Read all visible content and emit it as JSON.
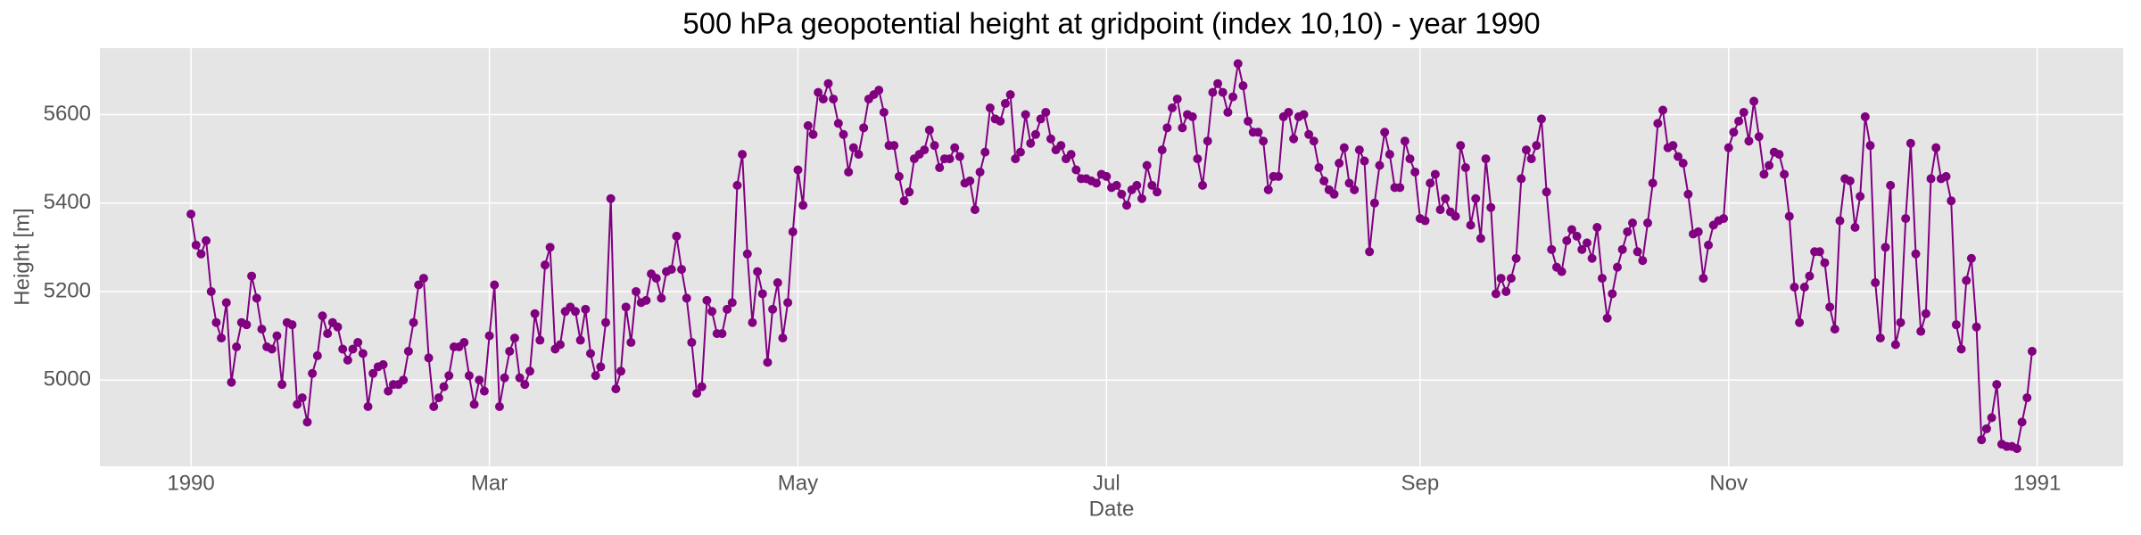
{
  "chart_data": {
    "type": "line",
    "title": "500 hPa geopotential height at gridpoint (index 10,10) - year 1990",
    "xlabel": "Date",
    "ylabel": "Height [m]",
    "color": "#800080",
    "grid": true,
    "xlim": [
      -18,
      382
    ],
    "xticks": [
      {
        "value": 0,
        "label": "1990"
      },
      {
        "value": 59,
        "label": "Mar"
      },
      {
        "value": 120,
        "label": "May"
      },
      {
        "value": 181,
        "label": "Jul"
      },
      {
        "value": 243,
        "label": "Sep"
      },
      {
        "value": 304,
        "label": "Nov"
      },
      {
        "value": 365,
        "label": "1991"
      }
    ],
    "ylim": [
      4805,
      5750
    ],
    "yticks": [
      5000,
      5200,
      5400,
      5600
    ],
    "values": [
      5375,
      5305,
      5285,
      5315,
      5200,
      5130,
      5095,
      5175,
      4995,
      5075,
      5130,
      5125,
      5235,
      5185,
      5115,
      5075,
      5070,
      5100,
      4990,
      5130,
      5125,
      4945,
      4960,
      4905,
      5015,
      5055,
      5145,
      5105,
      5130,
      5120,
      5070,
      5045,
      5070,
      5085,
      5060,
      4940,
      5015,
      5030,
      5035,
      4975,
      4990,
      4990,
      5000,
      5065,
      5130,
      5215,
      5230,
      5050,
      4940,
      4960,
      4985,
      5010,
      5075,
      5075,
      5085,
      5010,
      4945,
      5000,
      4975,
      5100,
      5215,
      4940,
      5005,
      5065,
      5095,
      5005,
      4990,
      5020,
      5150,
      5090,
      5260,
      5300,
      5070,
      5080,
      5155,
      5165,
      5155,
      5090,
      5160,
      5060,
      5010,
      5030,
      5130,
      5410,
      4980,
      5020,
      5165,
      5085,
      5200,
      5175,
      5180,
      5240,
      5230,
      5185,
      5245,
      5250,
      5325,
      5250,
      5185,
      5085,
      4970,
      4985,
      5180,
      5155,
      5105,
      5105,
      5160,
      5175,
      5440,
      5510,
      5285,
      5130,
      5245,
      5195,
      5040,
      5160,
      5220,
      5095,
      5175,
      5335,
      5475,
      5395,
      5575,
      5555,
      5650,
      5635,
      5670,
      5635,
      5580,
      5555,
      5470,
      5525,
      5510,
      5570,
      5635,
      5645,
      5655,
      5605,
      5530,
      5530,
      5460,
      5405,
      5425,
      5500,
      5510,
      5520,
      5565,
      5530,
      5480,
      5500,
      5500,
      5525,
      5505,
      5445,
      5450,
      5385,
      5470,
      5515,
      5615,
      5590,
      5585,
      5625,
      5645,
      5500,
      5515,
      5600,
      5535,
      5555,
      5590,
      5605,
      5545,
      5520,
      5530,
      5500,
      5510,
      5475,
      5455,
      5455,
      5450,
      5445,
      5465,
      5460,
      5435,
      5440,
      5420,
      5395,
      5430,
      5440,
      5410,
      5485,
      5440,
      5425,
      5520,
      5570,
      5615,
      5635,
      5570,
      5600,
      5595,
      5500,
      5440,
      5540,
      5650,
      5670,
      5650,
      5605,
      5640,
      5715,
      5665,
      5585,
      5560,
      5560,
      5540,
      5430,
      5460,
      5460,
      5595,
      5605,
      5545,
      5595,
      5600,
      5555,
      5540,
      5480,
      5450,
      5430,
      5420,
      5490,
      5525,
      5445,
      5430,
      5520,
      5495,
      5290,
      5400,
      5485,
      5560,
      5510,
      5435,
      5435,
      5540,
      5500,
      5470,
      5365,
      5360,
      5445,
      5465,
      5385,
      5410,
      5380,
      5370,
      5530,
      5480,
      5350,
      5410,
      5320,
      5500,
      5390,
      5195,
      5230,
      5200,
      5230,
      5275,
      5455,
      5520,
      5500,
      5530,
      5590,
      5425,
      5295,
      5255,
      5245,
      5315,
      5340,
      5325,
      5295,
      5310,
      5275,
      5345,
      5230,
      5140,
      5195,
      5255,
      5295,
      5335,
      5355,
      5290,
      5270,
      5355,
      5445,
      5580,
      5610,
      5525,
      5530,
      5505,
      5490,
      5420,
      5330,
      5335,
      5230,
      5305,
      5350,
      5360,
      5365,
      5525,
      5560,
      5585,
      5605,
      5540,
      5630,
      5550,
      5465,
      5485,
      5515,
      5510,
      5465,
      5370,
      5210,
      5130,
      5210,
      5235,
      5290,
      5290,
      5265,
      5165,
      5115,
      5360,
      5455,
      5450,
      5345,
      5415,
      5595,
      5530,
      5220,
      5095,
      5300,
      5440,
      5080,
      5130,
      5365,
      5535,
      5285,
      5110,
      5150,
      5455,
      5525,
      5455,
      5460,
      5405,
      5125,
      5070,
      5225,
      5275,
      5120,
      4865,
      4890,
      4915,
      4990,
      4855,
      4850,
      4850,
      4845,
      4905,
      4960,
      5065
    ]
  }
}
